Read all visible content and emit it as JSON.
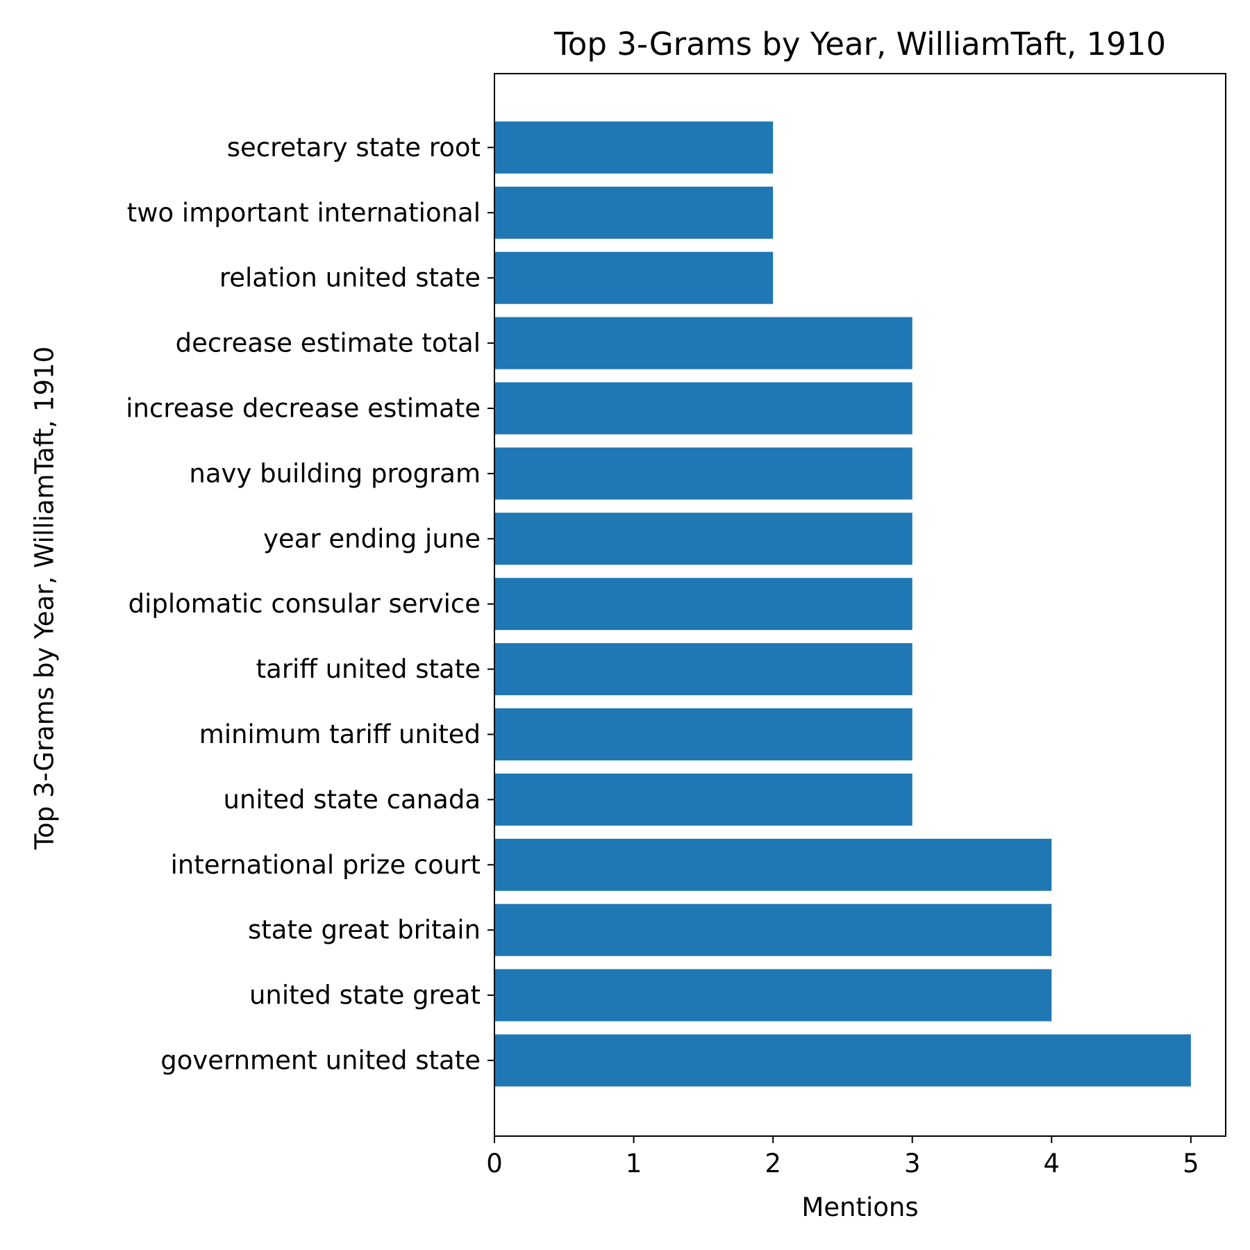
{
  "chart_data": {
    "type": "bar",
    "orientation": "horizontal",
    "title": "Top 3-Grams by Year, WilliamTaft, 1910",
    "xlabel": "Mentions",
    "ylabel": "Top 3-Grams by Year, WilliamTaft, 1910",
    "categories": [
      "government united state",
      "united state great",
      "state great britain",
      "international prize court",
      "united state canada",
      "minimum tariff united",
      "tariff united state",
      "diplomatic consular service",
      "year ending june",
      "navy building program",
      "increase decrease estimate",
      "decrease estimate total",
      "relation united state",
      "two important international",
      "secretary state root"
    ],
    "values": [
      5,
      4,
      4,
      4,
      3,
      3,
      3,
      3,
      3,
      3,
      3,
      3,
      2,
      2,
      2
    ],
    "xlim": [
      0,
      5.25
    ],
    "xticks": [
      "0",
      "1",
      "2",
      "3",
      "4",
      "5"
    ],
    "bar_color": "#1f77b4",
    "grid": false,
    "legend": "none"
  }
}
